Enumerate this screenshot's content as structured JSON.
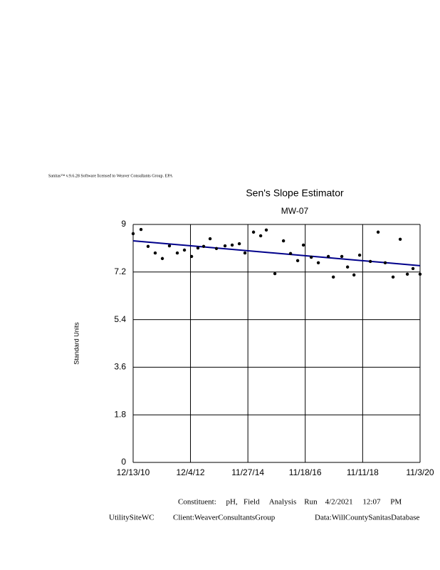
{
  "header": {
    "software": "Sanitas™ v.9.6.28 Software licensed to Weaver Consultants Group. EPA"
  },
  "chart_data": {
    "type": "scatter",
    "title": "Sen's Slope Estimator",
    "subtitle": "MW-07",
    "y_label": "Standard Units",
    "x": [
      "12/13/10",
      "3/22/11",
      "6/19/11",
      "9/17/11",
      "12/16/11",
      "3/14/12",
      "6/21/12",
      "9/19/12",
      "12/18/12",
      "3/8/13",
      "5/19/13",
      "8/8/13",
      "10/27/13",
      "2/12/14",
      "5/13/14",
      "8/11/14",
      "10/21/14",
      "2/6/15",
      "5/7/15",
      "7/17/15",
      "11/2/15",
      "2/18/16",
      "5/17/16",
      "8/15/16",
      "10/26/16",
      "2/2/17",
      "5/2/17",
      "9/5/17",
      "11/7/17",
      "2/22/18",
      "5/5/18",
      "7/25/18",
      "10/4/18",
      "2/16/19",
      "5/25/19",
      "8/22/19",
      "11/29/19",
      "2/27/20",
      "5/27/20",
      "8/6/20",
      "11/3/20"
    ],
    "values": [
      8.65,
      8.81,
      8.17,
      7.92,
      7.71,
      8.19,
      7.92,
      8.03,
      7.79,
      8.11,
      8.17,
      8.46,
      8.09,
      8.19,
      8.22,
      8.27,
      7.92,
      8.71,
      8.57,
      8.79,
      7.14,
      8.38,
      7.9,
      7.63,
      8.22,
      7.76,
      7.55,
      7.79,
      7.01,
      7.79,
      7.39,
      7.09,
      7.84,
      7.6,
      8.71,
      7.55,
      7.01,
      8.44,
      7.12,
      7.33,
      7.12
    ],
    "color": "#000000",
    "trend_line": {
      "x": [
        "12/13/10",
        "11/3/20"
      ],
      "values": [
        8.38,
        7.44
      ],
      "color": "#00008b"
    },
    "xlim": [
      "12/13/10",
      "11/3/20"
    ],
    "xticks": [
      "12/13/10",
      "12/4/12",
      "11/27/14",
      "11/18/16",
      "11/11/18",
      "11/3/20"
    ],
    "ylim": [
      0,
      9
    ],
    "yticks": [
      0,
      1.8,
      3.6,
      5.4,
      7.2,
      9
    ],
    "grid": true
  },
  "footer": {
    "constituent": "Constituent:     pH,   Field     Analysis    Run    4/2/2021     12:07     PM",
    "site": "UtilitySiteWC",
    "client": "Client:WeaverConsultantsGroup",
    "data": "Data:WillCountySanitasDatabase"
  }
}
